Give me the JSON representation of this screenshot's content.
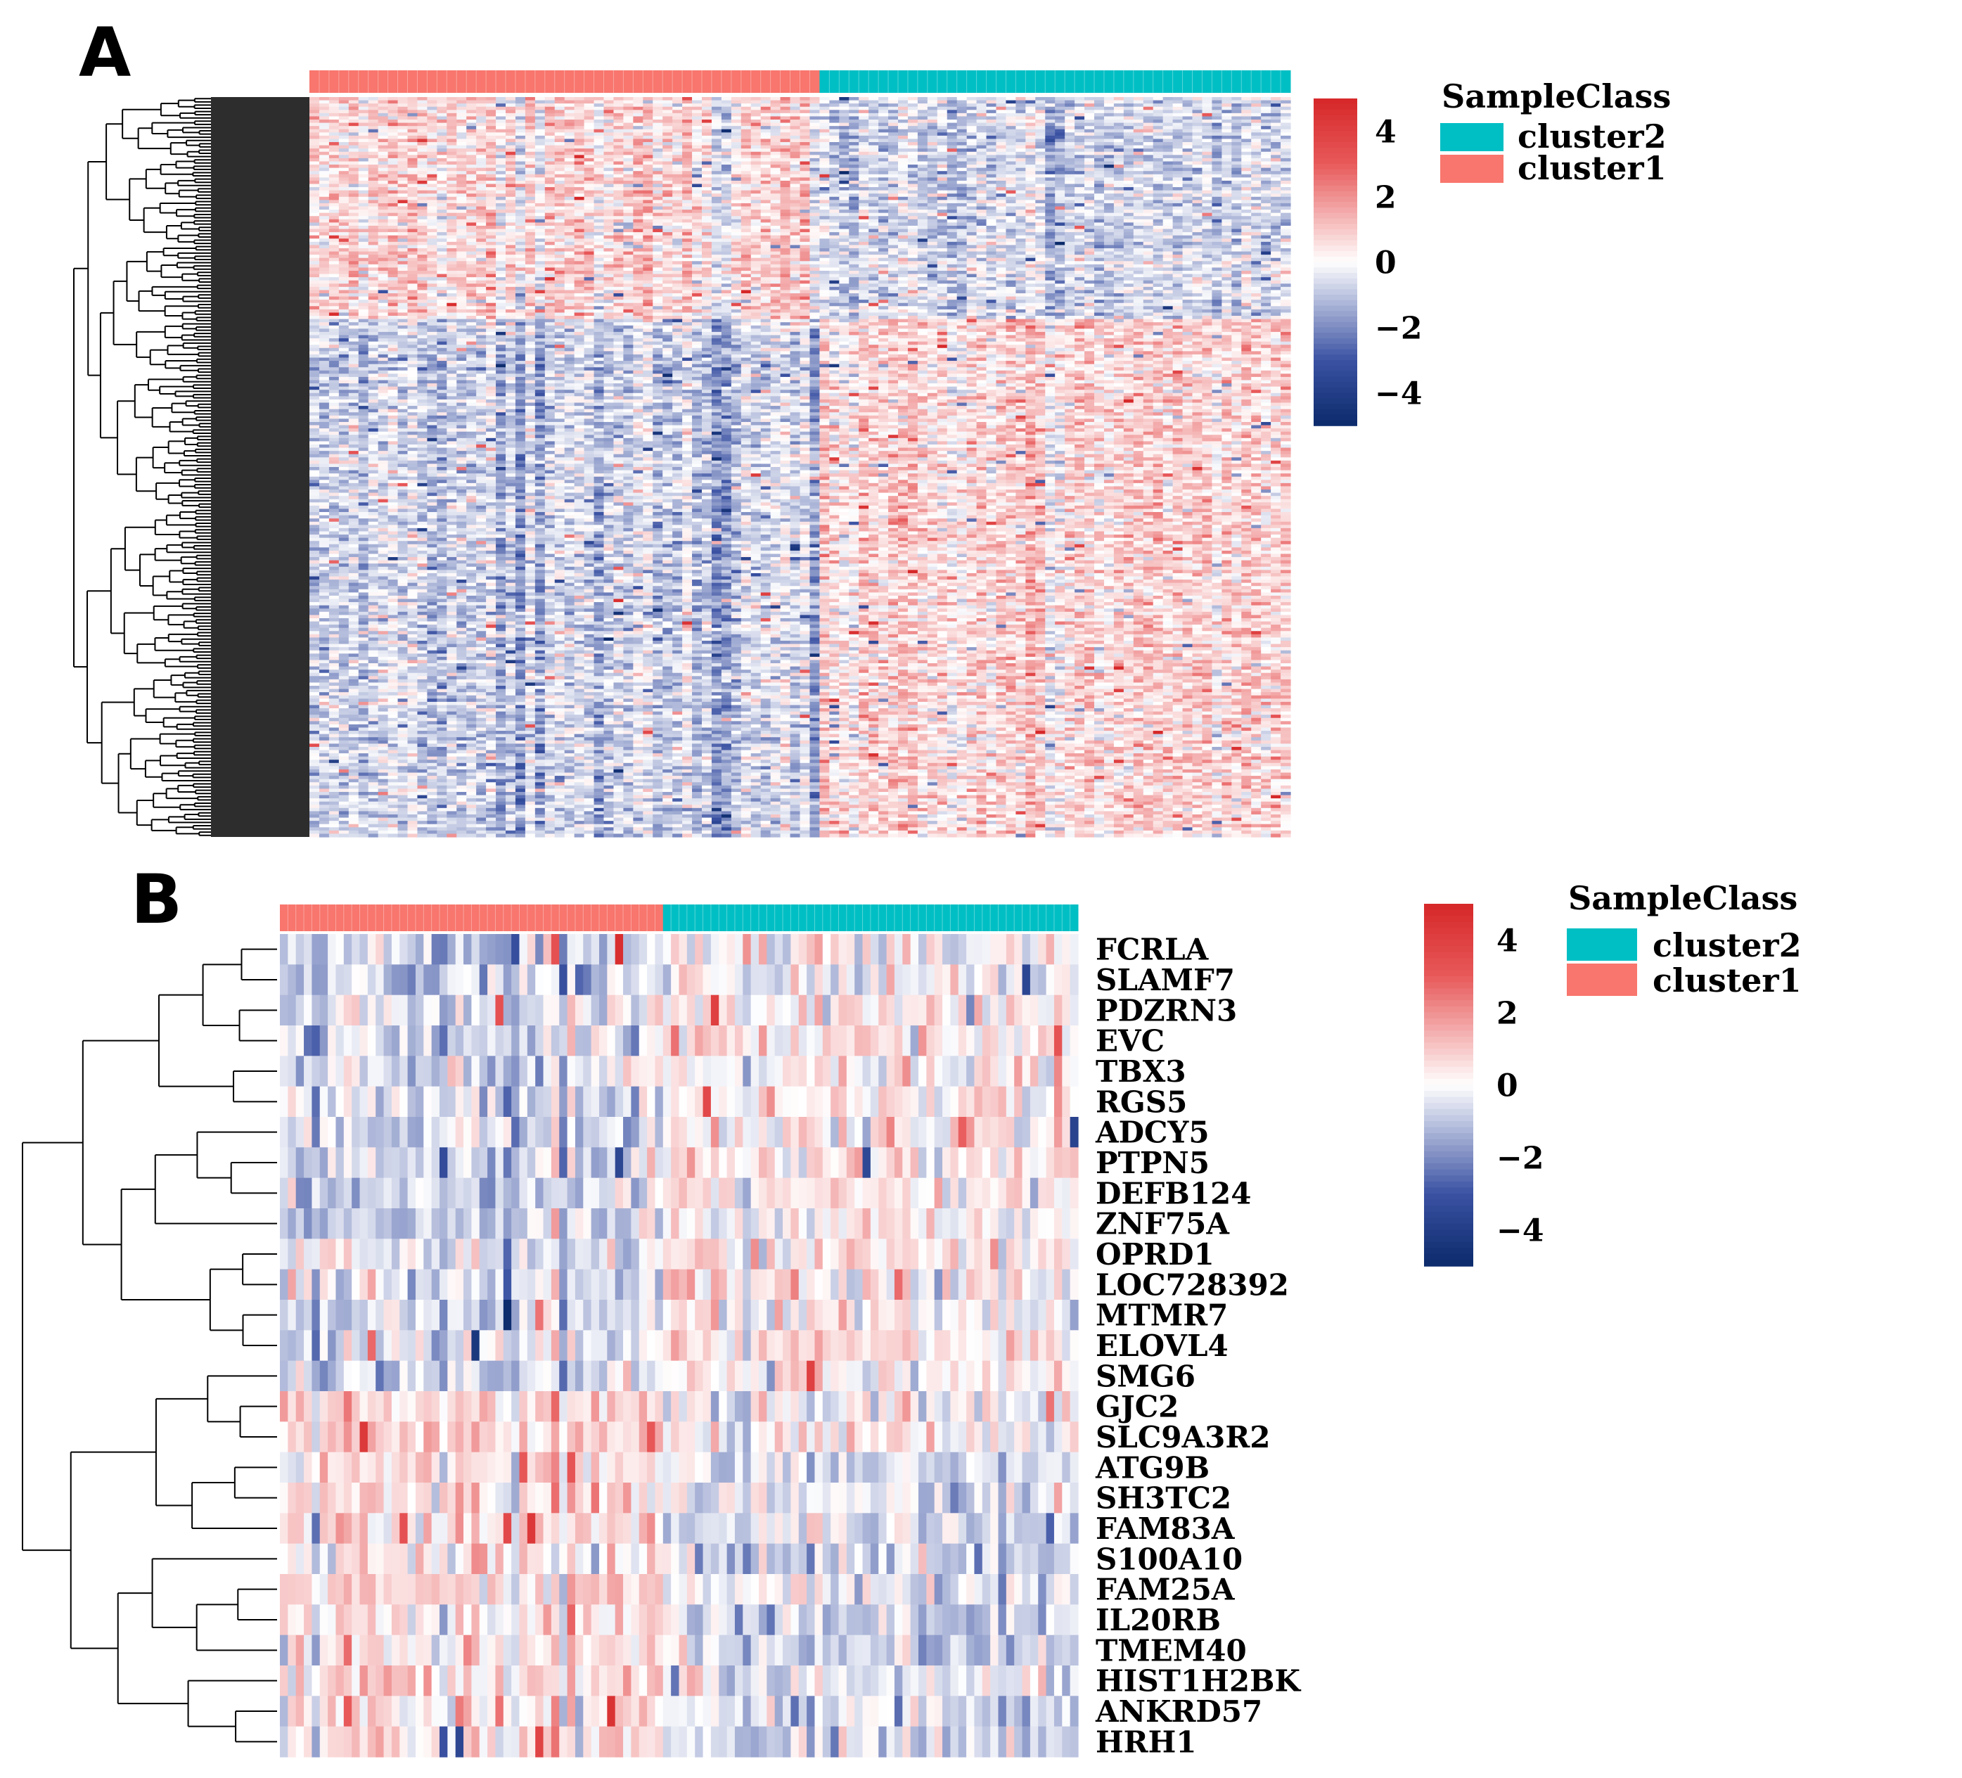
{
  "chart_data": [
    {
      "panel": "A",
      "type": "heatmap",
      "title": "",
      "value_range": [
        -5,
        5
      ],
      "n_rows": 230,
      "n_cols": 100,
      "groups": [
        {
          "name": "cluster1",
          "n": 52,
          "color": "#F8766D"
        },
        {
          "name": "cluster2",
          "n": 48,
          "color": "#00BFC4"
        }
      ],
      "row_labels": [],
      "row_dendrogram": true,
      "legend": {
        "title": "SampleClass",
        "entries": [
          {
            "label": "cluster2",
            "color": "#00BFC4"
          },
          {
            "label": "cluster1",
            "color": "#F8766D"
          }
        ]
      },
      "colorbar": {
        "ticks": [
          4,
          2,
          0,
          -2,
          -4
        ],
        "tick_labels": [
          "4",
          "2",
          "0",
          "−2",
          "−4"
        ],
        "colors": [
          "#0B2A6B",
          "#3B52A3",
          "#FFFFFF",
          "#E8595A",
          "#D62728"
        ]
      }
    },
    {
      "panel": "B",
      "type": "heatmap",
      "title": "",
      "value_range": [
        -5,
        5
      ],
      "n_rows": 27,
      "n_cols": 100,
      "groups": [
        {
          "name": "cluster1",
          "n": 48,
          "color": "#F8766D"
        },
        {
          "name": "cluster2",
          "n": 52,
          "color": "#00BFC4"
        }
      ],
      "row_labels": [
        "FCRLA",
        "SLAMF7",
        "PDZRN3",
        "EVC",
        "TBX3",
        "RGS5",
        "ADCY5",
        "PTPN5",
        "DEFB124",
        "ZNF75A",
        "OPRD1",
        "LOC728392",
        "MTMR7",
        "ELOVL4",
        "SMG6",
        "GJC2",
        "SLC9A3R2",
        "ATG9B",
        "SH3TC2",
        "FAM83A",
        "S100A10",
        "FAM25A",
        "IL20RB",
        "TMEM40",
        "HIST1H2BK",
        "ANKRD57",
        "HRH1"
      ],
      "row_dendrogram": true,
      "legend": {
        "title": "SampleClass",
        "entries": [
          {
            "label": "cluster2",
            "color": "#00BFC4"
          },
          {
            "label": "cluster1",
            "color": "#F8766D"
          }
        ]
      },
      "colorbar": {
        "ticks": [
          4,
          2,
          0,
          -2,
          -4
        ],
        "tick_labels": [
          "4",
          "2",
          "0",
          "−2",
          "−4"
        ],
        "colors": [
          "#0B2A6B",
          "#3B52A3",
          "#FFFFFF",
          "#E8595A",
          "#D62728"
        ]
      }
    }
  ],
  "panel_labels": [
    "A",
    "B"
  ]
}
